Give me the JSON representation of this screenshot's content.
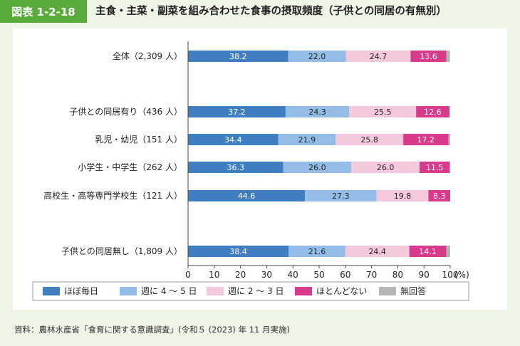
{
  "header": {
    "badge": "図表 1-2-18",
    "title": "主食・主菜・副菜を組み合わせた食事の摂取頻度（子供との同居の有無別）"
  },
  "chart_data": {
    "type": "bar",
    "orientation": "horizontal",
    "stacked": true,
    "percent_unit": "(%)",
    "xlim": [
      0,
      100
    ],
    "x_ticks": [
      "0",
      "10",
      "20",
      "30",
      "40",
      "50",
      "60",
      "70",
      "80",
      "90",
      "100"
    ],
    "categories": [
      "全体（2,309 人）",
      "子供との同居有り（436 人）",
      "乳児・幼児（151 人）",
      "小学生・中学生（262 人）",
      "高校生・高等専門学校生（121 人）",
      "子供との同居無し（1,809 人）"
    ],
    "series": [
      {
        "name": "ほぼ毎日",
        "color": "#3f7fc1",
        "values": [
          38.2,
          37.2,
          34.4,
          36.3,
          44.6,
          38.4
        ],
        "labels": [
          "38.2",
          "37.2",
          "34.4",
          "36.3",
          "44.6",
          "38.4"
        ]
      },
      {
        "name": "週に 4 〜 5 日",
        "color": "#93bde6",
        "values": [
          22.0,
          24.3,
          21.9,
          26.0,
          27.3,
          21.6
        ],
        "labels": [
          "22.0",
          "24.3",
          "21.9",
          "26.0",
          "27.3",
          "21.6"
        ]
      },
      {
        "name": "週に 2 〜 3 日",
        "color": "#f4c9dc",
        "values": [
          24.7,
          25.5,
          25.8,
          26.0,
          19.8,
          24.4
        ],
        "labels": [
          "24.7",
          "25.5",
          "25.8",
          "26.0",
          "19.8",
          "24.4"
        ]
      },
      {
        "name": "ほとんどない",
        "color": "#d83b8b",
        "values": [
          13.6,
          12.6,
          17.2,
          11.5,
          8.3,
          14.1
        ],
        "labels": [
          "13.6",
          "12.6",
          "17.2",
          "11.5",
          "8.3",
          "14.1"
        ]
      },
      {
        "name": "無回答",
        "color": "#b5b5b5",
        "values": [
          1.4,
          0.4,
          0.7,
          0.2,
          0.0,
          1.5
        ],
        "labels": [
          "",
          "",
          "",
          "",
          "",
          ""
        ]
      }
    ],
    "legend_position": "bottom"
  },
  "footer": {
    "source": "資料：農林水産省「食育に関する意識調査」(令和５ (2023) 年 11 月実施)"
  }
}
